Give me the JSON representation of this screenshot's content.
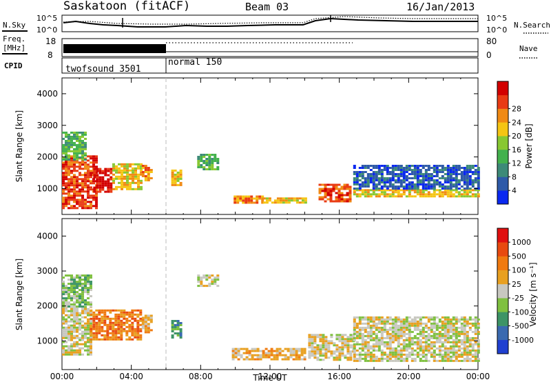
{
  "header": {
    "station": "Saskatoon (fitACF)",
    "beam": "Beam 03",
    "date": "16/Jan/2013"
  },
  "top_panels": {
    "nsky_label": "N.Sky",
    "nsearch_label": "N.Search",
    "freq_label_1": "Freq.",
    "freq_label_2": "[MHz]",
    "nave_label": "Nave",
    "cpid_label": "CPID",
    "noise_left_ticks": [
      "10^5",
      "10^0"
    ],
    "noise_right_ticks": [
      "10^5",
      "10^0"
    ],
    "freq_ticks": [
      "18",
      "8"
    ],
    "nave_ticks": [
      "80",
      "0"
    ],
    "cpid_segments": [
      {
        "label": "twofsound 3501",
        "start_hour": 0,
        "end_hour": 6
      },
      {
        "label": "normal 150",
        "start_hour": 6,
        "end_hour": 24
      }
    ]
  },
  "chart_data": [
    {
      "type": "heatmap",
      "title": "Power",
      "xlabel": "",
      "ylabel": "Slant Range [km]",
      "xlim": [
        0,
        24
      ],
      "ylim": [
        180,
        4500
      ],
      "y_ticks": [
        "1000",
        "2000",
        "3000",
        "4000"
      ],
      "colorbar": {
        "label": "Power [dB]",
        "ticks": [
          "4",
          "8",
          "12",
          "16",
          "20",
          "24",
          "28"
        ],
        "colors": [
          "#0a28f0",
          "#2e5aa8",
          "#3d8a78",
          "#43b14d",
          "#88c832",
          "#f5c514",
          "#f08a14",
          "#e93b14",
          "#d20000"
        ]
      },
      "regions": [
        {
          "x": [
            0.0,
            2.0
          ],
          "y": [
            350,
            2050
          ],
          "level": 7
        },
        {
          "x": [
            1.8,
            2.9
          ],
          "y": [
            900,
            1650
          ],
          "level": 8
        },
        {
          "x": [
            2.9,
            4.6
          ],
          "y": [
            1000,
            1800
          ],
          "level": 5
        },
        {
          "x": [
            4.6,
            5.2
          ],
          "y": [
            1250,
            1750
          ],
          "level": 6
        },
        {
          "x": [
            0.0,
            1.4
          ],
          "y": [
            1900,
            2800
          ],
          "level": 3
        },
        {
          "x": [
            6.3,
            6.9
          ],
          "y": [
            1100,
            1600
          ],
          "level": 5
        },
        {
          "x": [
            7.8,
            9.0
          ],
          "y": [
            1600,
            2100
          ],
          "level": 3
        },
        {
          "x": [
            9.9,
            11.6
          ],
          "y": [
            580,
            780
          ],
          "level": 6
        },
        {
          "x": [
            11.6,
            14.0
          ],
          "y": [
            550,
            720
          ],
          "level": 5
        },
        {
          "x": [
            14.8,
            16.6
          ],
          "y": [
            580,
            1150
          ],
          "level": 7
        },
        {
          "x": [
            16.8,
            24.0
          ],
          "y": [
            720,
            980
          ],
          "level": 5
        },
        {
          "x": [
            16.8,
            24.0
          ],
          "y": [
            980,
            1750
          ],
          "level": 1
        }
      ]
    },
    {
      "type": "heatmap",
      "title": "Velocity",
      "xlabel": "Time UT",
      "ylabel": "Slant Range [km]",
      "xlim": [
        0,
        24
      ],
      "ylim": [
        180,
        4500
      ],
      "y_ticks": [
        "1000",
        "2000",
        "3000",
        "4000"
      ],
      "x_ticks": [
        "00:00",
        "04:00",
        "08:00",
        "12:00",
        "16:00",
        "20:00",
        "00:00"
      ],
      "colorbar": {
        "label": "Velocity [m s⁻¹]",
        "ticks": [
          "1000",
          "500",
          "100",
          "25",
          "-25",
          "-100",
          "-500",
          "-1000"
        ],
        "colors": [
          "#2040d0",
          "#3a6ab0",
          "#3d9466",
          "#7fc040",
          "#c8c8c0",
          "#e8a020",
          "#f07a10",
          "#e84a10",
          "#e01010"
        ]
      },
      "regions": [
        {
          "x": [
            0.0,
            1.6
          ],
          "y": [
            600,
            2000
          ],
          "level": 4
        },
        {
          "x": [
            1.6,
            4.6
          ],
          "y": [
            1050,
            1900
          ],
          "level": 6
        },
        {
          "x": [
            4.6,
            5.2
          ],
          "y": [
            1250,
            1750
          ],
          "level": 5
        },
        {
          "x": [
            0.0,
            1.6
          ],
          "y": [
            2000,
            2900
          ],
          "level": 3
        },
        {
          "x": [
            6.3,
            6.9
          ],
          "y": [
            1100,
            1600
          ],
          "level": 2
        },
        {
          "x": [
            7.8,
            9.0
          ],
          "y": [
            2600,
            2900
          ],
          "level": 4
        },
        {
          "x": [
            9.8,
            14.0
          ],
          "y": [
            500,
            800
          ],
          "level": 5
        },
        {
          "x": [
            14.2,
            16.8
          ],
          "y": [
            450,
            1200
          ],
          "level": 4
        },
        {
          "x": [
            16.8,
            24.0
          ],
          "y": [
            450,
            1700
          ],
          "level": 4
        }
      ]
    }
  ]
}
